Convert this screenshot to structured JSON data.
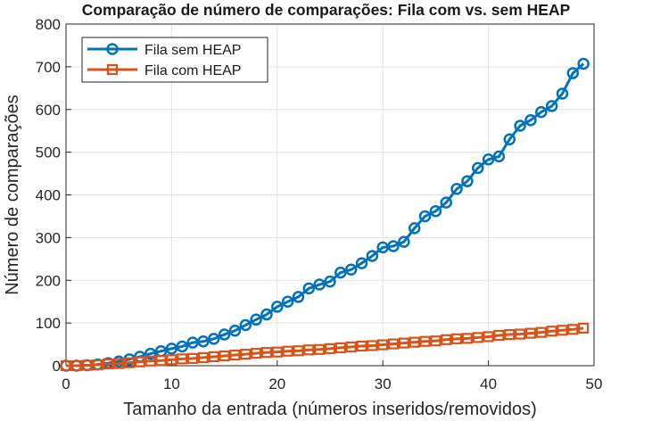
{
  "chart_data": {
    "type": "line",
    "title": "Comparação de número de comparações: Fila com vs. sem HEAP",
    "xlabel": "Tamanho da entrada (números inseridos/removidos)",
    "ylabel": "Número de comparações",
    "xlim": [
      0,
      50
    ],
    "ylim": [
      0,
      800
    ],
    "xticks": [
      0,
      10,
      20,
      30,
      40,
      50
    ],
    "yticks": [
      0,
      100,
      200,
      300,
      400,
      500,
      600,
      700,
      800
    ],
    "grid": true,
    "legend_position": "top-left",
    "x": [
      0,
      1,
      2,
      3,
      4,
      5,
      6,
      7,
      8,
      9,
      10,
      11,
      12,
      13,
      14,
      15,
      16,
      17,
      18,
      19,
      20,
      21,
      22,
      23,
      24,
      25,
      26,
      27,
      28,
      29,
      30,
      31,
      32,
      33,
      34,
      35,
      36,
      37,
      38,
      39,
      40,
      41,
      42,
      43,
      44,
      45,
      46,
      47,
      48,
      49
    ],
    "series": [
      {
        "name": "Fila sem HEAP",
        "color": "#0072BD",
        "marker": "circle",
        "values": [
          0,
          0,
          1,
          3,
          6,
          10,
          15,
          21,
          28,
          34,
          40,
          45,
          54,
          57,
          63,
          73,
          82,
          95,
          108,
          120,
          138,
          150,
          161,
          181,
          190,
          197,
          218,
          225,
          240,
          257,
          277,
          280,
          290,
          322,
          350,
          362,
          382,
          414,
          432,
          463,
          483,
          490,
          530,
          562,
          575,
          594,
          608,
          637,
          685,
          707
        ]
      },
      {
        "name": "Fila com HEAP",
        "color": "#D95319",
        "marker": "square",
        "values": [
          0,
          0,
          1,
          2,
          4,
          5,
          7,
          9,
          11,
          12,
          14,
          16,
          17,
          19,
          21,
          23,
          25,
          27,
          29,
          31,
          32,
          34,
          35,
          37,
          38,
          40,
          42,
          44,
          46,
          47,
          49,
          51,
          53,
          55,
          57,
          58,
          61,
          63,
          64,
          66,
          68,
          71,
          73,
          74,
          76,
          78,
          81,
          83,
          85,
          88
        ]
      }
    ]
  }
}
